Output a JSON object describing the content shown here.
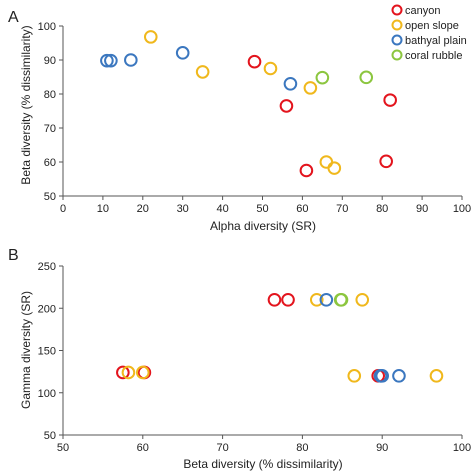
{
  "chart_data": [
    {
      "panel_label": "A",
      "type": "scatter",
      "xlabel": "Alpha diversity (SR)",
      "ylabel": "Beta diversity (% dissimilarity)",
      "xlim": [
        0,
        100
      ],
      "ylim": [
        50,
        100
      ],
      "xticks": [
        0,
        10,
        20,
        30,
        40,
        50,
        60,
        70,
        80,
        90,
        100
      ],
      "yticks": [
        50,
        60,
        70,
        80,
        90,
        100
      ],
      "grid": false,
      "legend": "top-right",
      "series": [
        {
          "name": "canyon",
          "color": "#e3141d",
          "points": [
            [
              48,
              89.5
            ],
            [
              56,
              76.5
            ],
            [
              61,
              57.5
            ],
            [
              81,
              60.2
            ],
            [
              82,
              78.2
            ]
          ]
        },
        {
          "name": "open slope",
          "color": "#f0b81c",
          "points": [
            [
              22,
              96.8
            ],
            [
              35,
              86.5
            ],
            [
              52,
              87.5
            ],
            [
              62,
              81.8
            ],
            [
              66,
              60
            ],
            [
              68,
              58.2
            ]
          ]
        },
        {
          "name": "bathyal plain",
          "color": "#3b77bf",
          "points": [
            [
              11,
              89.8
            ],
            [
              12,
              89.8
            ],
            [
              17,
              90
            ],
            [
              30,
              92.1
            ],
            [
              57,
              83
            ]
          ]
        },
        {
          "name": "coral rubble",
          "color": "#8cc63f",
          "points": [
            [
              65,
              84.8
            ],
            [
              76,
              84.9
            ]
          ]
        }
      ]
    },
    {
      "panel_label": "B",
      "type": "scatter",
      "xlabel": "Beta diversity (% dissimilarity)",
      "ylabel": "Gamma diversity (SR)",
      "xlim": [
        50,
        100
      ],
      "ylim": [
        50,
        250
      ],
      "xticks": [
        50,
        60,
        70,
        80,
        90,
        100
      ],
      "yticks": [
        50,
        100,
        150,
        200,
        250
      ],
      "grid": false,
      "series": [
        {
          "name": "canyon",
          "color": "#e3141d",
          "points": [
            [
              57.5,
              124
            ],
            [
              60.2,
              124
            ],
            [
              76.5,
              210
            ],
            [
              78.2,
              210
            ],
            [
              89.5,
              120
            ]
          ]
        },
        {
          "name": "open slope",
          "color": "#f0b81c",
          "points": [
            [
              58.2,
              124
            ],
            [
              60,
              124
            ],
            [
              81.8,
              210
            ],
            [
              87.5,
              210
            ],
            [
              86.5,
              120
            ],
            [
              96.8,
              120
            ]
          ]
        },
        {
          "name": "bathyal plain",
          "color": "#3b77bf",
          "points": [
            [
              83,
              210
            ],
            [
              89.8,
              120
            ],
            [
              89.8,
              120
            ],
            [
              90,
              120
            ],
            [
              92.1,
              120
            ]
          ]
        },
        {
          "name": "coral rubble",
          "color": "#8cc63f",
          "points": [
            [
              84.8,
              210
            ],
            [
              84.9,
              210
            ]
          ]
        }
      ]
    }
  ]
}
